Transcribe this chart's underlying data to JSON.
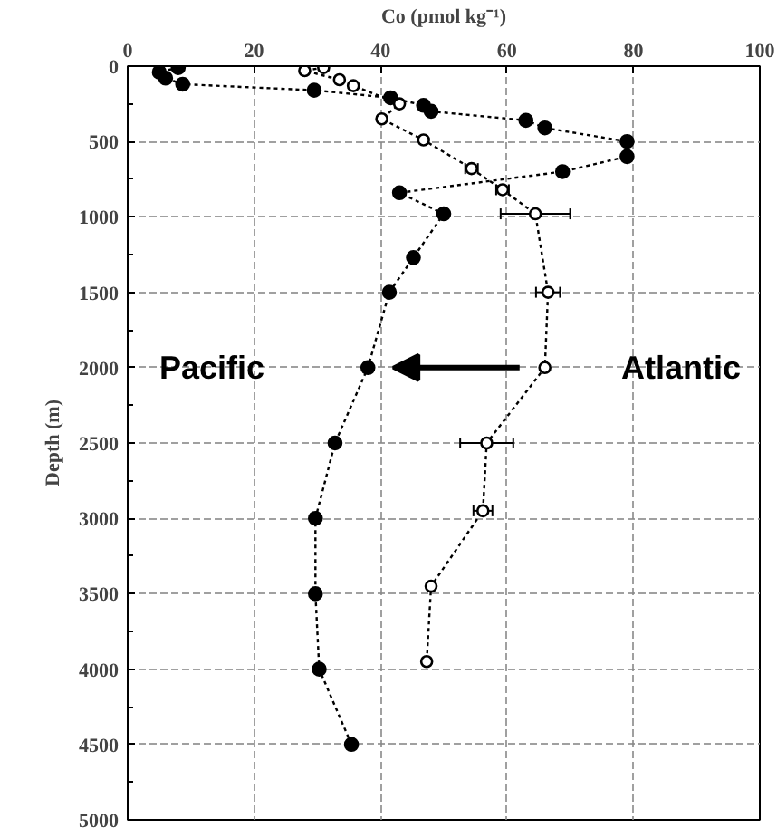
{
  "chart_data": {
    "type": "line",
    "xlabel": "Co (pmol kg⁻¹)",
    "ylabel": "Depth (m)",
    "xlim": [
      0,
      100
    ],
    "xticks": [
      0,
      20,
      40,
      60,
      80,
      100
    ],
    "ylim": [
      5000,
      0
    ],
    "yticks": [
      0,
      500,
      1000,
      1500,
      2000,
      2500,
      3000,
      3500,
      4000,
      4500,
      5000
    ],
    "grid": true,
    "marker": "circle",
    "line_style": "dotted",
    "annotations": [
      "Pacific",
      "Atlantic"
    ],
    "series": [
      {
        "color": "#000000",
        "x": [
          8,
          5,
          6,
          8.7,
          29.5,
          41.6,
          46.8,
          48,
          63,
          66,
          79,
          79,
          68.8,
          43,
          50,
          45.2,
          41.4,
          38,
          32.8,
          29.7,
          29.7,
          30.3,
          35.4
        ],
        "values": [
          10,
          40,
          80,
          120,
          160,
          210,
          260,
          300,
          360,
          410,
          500,
          600,
          700,
          840,
          980,
          1270,
          1500,
          2000,
          2500,
          3000,
          3500,
          4000,
          4500
        ]
      },
      {
        "color": "#000000",
        "x": [
          31,
          28,
          33.5,
          35.7,
          43,
          40.2,
          46.8,
          54.4,
          59.3,
          64.5,
          66.5,
          66,
          56.8,
          56.2,
          48,
          47.3
        ],
        "values": [
          10,
          30,
          90,
          130,
          250,
          350,
          490,
          680,
          820,
          980,
          1500,
          2000,
          2500,
          2950,
          3450,
          3950
        ],
        "xerrors": [
          null,
          null,
          null,
          null,
          null,
          null,
          null,
          1,
          1,
          5.5,
          1.9,
          null,
          4.2,
          1.5,
          null,
          null
        ]
      }
    ]
  }
}
